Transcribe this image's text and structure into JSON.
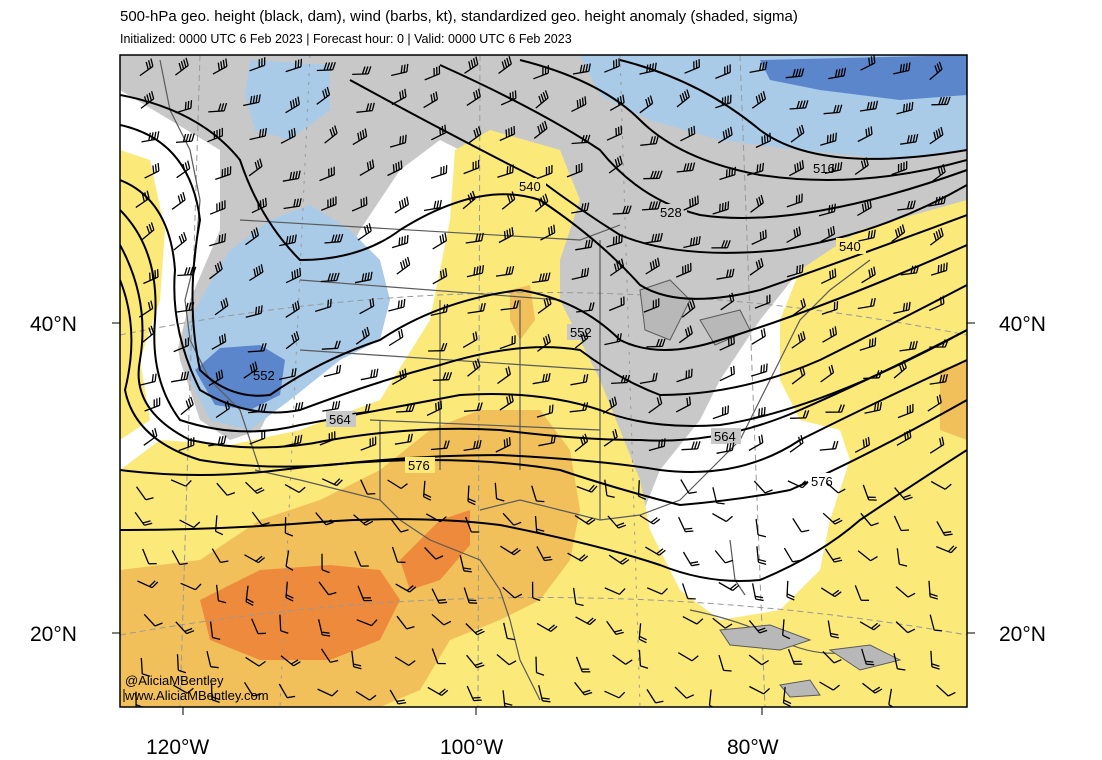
{
  "title": "500-hPa geo. height (black, dam), wind (barbs, kt), standardized geo. height anomaly (shaded, sigma)",
  "subtitle": "Initialized: 0000 UTC 6 Feb 2023 | Forecast hour: 0 | Valid: 0000 UTC 6 Feb 2023",
  "axes": {
    "lat_labels": [
      "40°N",
      "20°N"
    ],
    "lon_labels": [
      "120°W",
      "100°W",
      "80°W"
    ]
  },
  "contour_labels": [
    "516",
    "528",
    "540",
    "540",
    "552",
    "552",
    "564",
    "564",
    "576",
    "576"
  ],
  "credit": {
    "handle": "@AliciaMBentley",
    "site": "www.AliciaMBentley.com"
  },
  "colors": {
    "anomaly_neg_2": "#5b86cc",
    "anomaly_neg_1": "#a9cbe8",
    "anomaly_near_zero": "#c8c8c8",
    "anomaly_pos_1": "#fbe97a",
    "anomaly_pos_2": "#f2c05a",
    "anomaly_pos_3": "#ee8a3c",
    "contour": "#000000",
    "borders": "#5a5a5a",
    "graticule": "#999999"
  }
}
